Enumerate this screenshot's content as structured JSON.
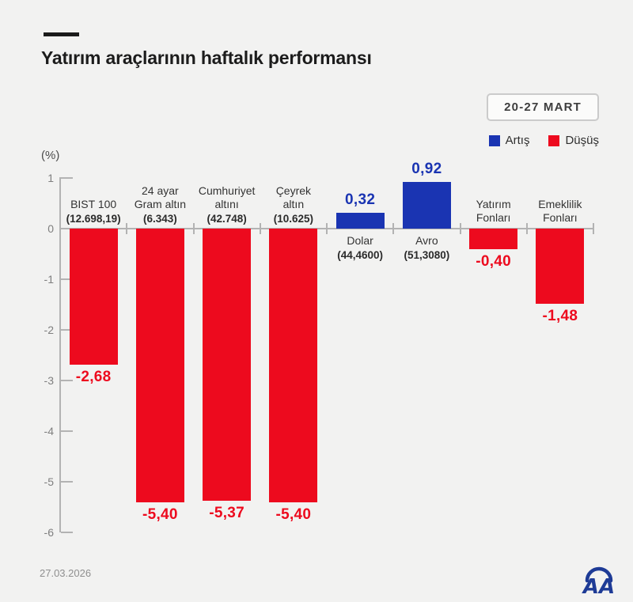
{
  "header": {
    "title": "Yatırım araçlarının haftalık performansı",
    "date_range": "20-27 MART"
  },
  "chart_data": {
    "type": "bar",
    "title": "Yatırım araçlarının haftalık performansı",
    "xlabel": "",
    "ylabel": "(%)",
    "ylim": [
      -6,
      1
    ],
    "yticks": [
      1,
      0,
      -1,
      -2,
      -3,
      -4,
      -5,
      -6
    ],
    "grid": false,
    "legend_position": "top-right",
    "categories": [
      "BIST 100",
      "24 ayar Gram altın",
      "Cumhuriyet altını",
      "Çeyrek altın",
      "Dolar",
      "Avro",
      "Yatırım Fonları",
      "Emeklilik Fonları"
    ],
    "category_label_lines": [
      [
        "BIST 100"
      ],
      [
        "24 ayar",
        "Gram altın"
      ],
      [
        "Cumhuriyet",
        "altını"
      ],
      [
        "Çeyrek",
        "altın"
      ],
      [
        "Dolar"
      ],
      [
        "Avro"
      ],
      [
        "Yatırım",
        "Fonları"
      ],
      [
        "Emeklilik",
        "Fonları"
      ]
    ],
    "category_sublabels": [
      "(12.698,19)",
      "(6.343)",
      "(42.748)",
      "(10.625)",
      "(44,4600)",
      "(51,3080)",
      "",
      ""
    ],
    "values": [
      -2.68,
      -5.4,
      -5.37,
      -5.4,
      0.32,
      0.92,
      -0.4,
      -1.48
    ],
    "value_labels": [
      "-2,68",
      "-5,40",
      "-5,37",
      "-5,40",
      "0,32",
      "0,92",
      "-0,40",
      "-1,48"
    ],
    "colors": {
      "up": "#1a34b2",
      "down": "#ed0a1e"
    },
    "legend": [
      {
        "label": "Artış",
        "color": "#1a34b2"
      },
      {
        "label": "Düşüş",
        "color": "#ed0a1e"
      }
    ]
  },
  "footer": {
    "date": "27.03.2026",
    "logo": "AA"
  }
}
